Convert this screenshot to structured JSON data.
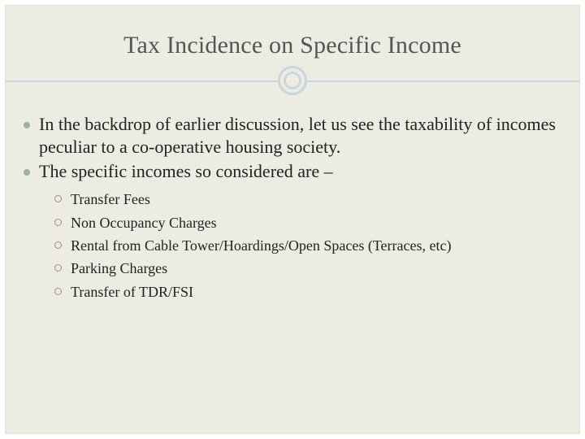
{
  "slide": {
    "title": "Tax Incidence on Specific Income",
    "colors": {
      "background": "#ecece2",
      "title_text": "#555555",
      "rule_line": "#c9d6dc",
      "main_bullet": "#9eb0a1",
      "sub_bullet_ring": "#a58f6a",
      "body_text": "#222222"
    },
    "typography": {
      "title_fontsize": 30,
      "main_fontsize": 22,
      "sub_fontsize": 18,
      "font_family": "Georgia"
    },
    "bullets": [
      "In the backdrop of earlier discussion, let us see the taxability of incomes peculiar to a co-operative housing society.",
      "The specific incomes so considered are –"
    ],
    "sub_bullets": [
      "Transfer Fees",
      "Non Occupancy Charges",
      "Rental from Cable Tower/Hoardings/Open Spaces (Terraces, etc)",
      "Parking Charges",
      "Transfer of TDR/FSI"
    ]
  }
}
